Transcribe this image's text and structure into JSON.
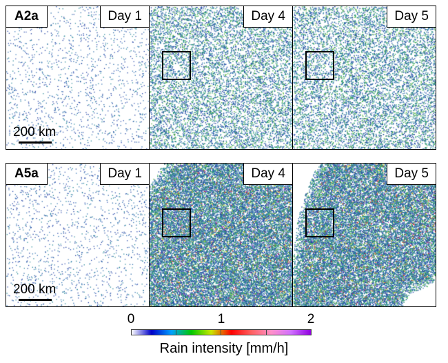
{
  "rows": [
    {
      "experiment": "A2a",
      "scale_label": "200 km",
      "panels": [
        {
          "day_label": "Day 1",
          "rain_field": "sparse-uniform",
          "inset_box": false
        },
        {
          "day_label": "Day 4",
          "rain_field": "dense-uniform",
          "inset_box": true
        },
        {
          "day_label": "Day 5",
          "rain_field": "dense-uniform",
          "inset_box": true
        }
      ]
    },
    {
      "experiment": "A5a",
      "scale_label": "200 km",
      "panels": [
        {
          "day_label": "Day 1",
          "rain_field": "sparse-uniform",
          "inset_box": false
        },
        {
          "day_label": "Day 4",
          "rain_field": "clustered",
          "inset_box": true
        },
        {
          "day_label": "Day 5",
          "rain_field": "strongly-clustered",
          "inset_box": true
        }
      ]
    }
  ],
  "colorbar": {
    "title": "Rain intensity [mm/h]",
    "ticks": [
      "0",
      "1",
      "2"
    ],
    "range": [
      0,
      2
    ],
    "colors": [
      "#ffffff",
      "#0000c8",
      "#00a0ff",
      "#00c800",
      "#c8e600",
      "#ff0000",
      "#ff6060",
      "#ff90c8",
      "#d070ff",
      "#9000e0"
    ]
  }
}
